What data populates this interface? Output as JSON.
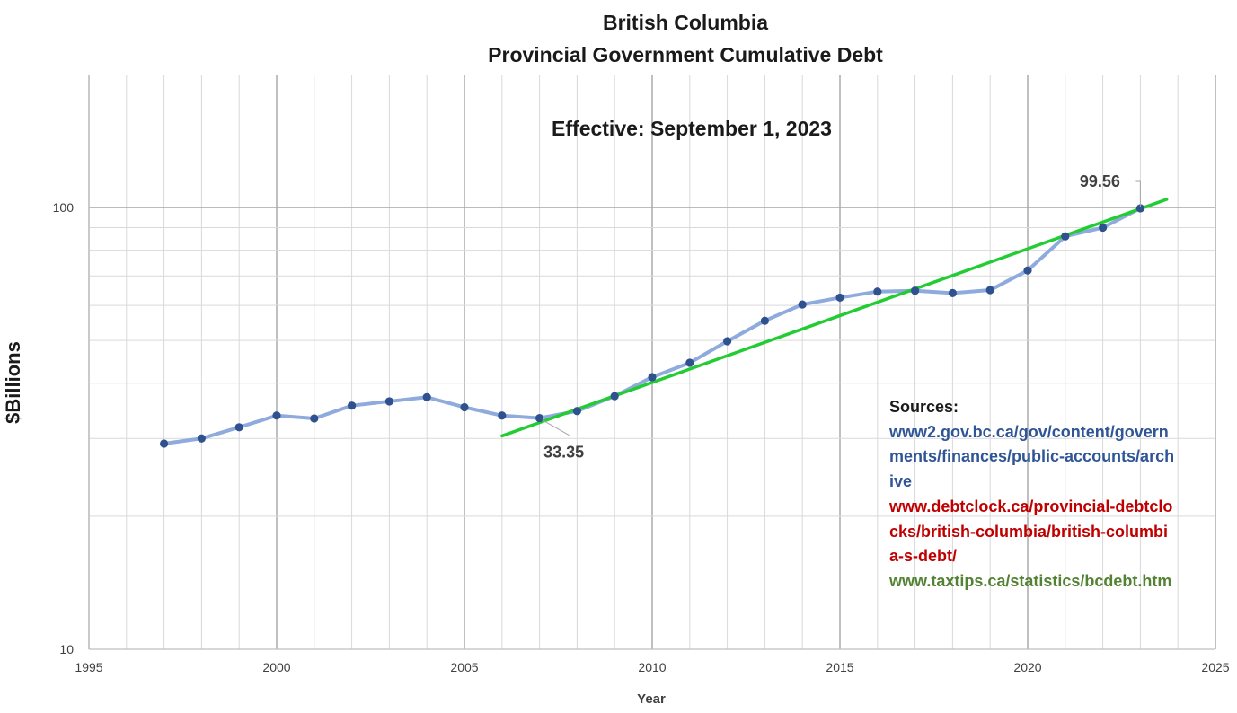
{
  "chart_data": {
    "type": "line",
    "title": "British Columbia",
    "subtitle": "Provincial Government Cumulative Debt",
    "annotation": "Effective: September 1, 2023",
    "xlabel": "Year",
    "ylabel": "$Billions",
    "xlim": [
      1995,
      2025
    ],
    "ylim": [
      10,
      200
    ],
    "yscale": "log",
    "grid": true,
    "x_ticks": [
      "1995",
      "2000",
      "2005",
      "2010",
      "2015",
      "2020",
      "2025"
    ],
    "y_ticks": [
      "10",
      "100"
    ],
    "series": [
      {
        "x": [
          1997,
          1998,
          1999,
          2000,
          2001,
          2002,
          2003,
          2004,
          2005,
          2006,
          2007,
          2008,
          2009,
          2010,
          2011,
          2012,
          2013,
          2014,
          2015,
          2016,
          2017,
          2018,
          2019,
          2020,
          2021,
          2022,
          2023
        ],
        "values": [
          29.2,
          30.0,
          31.8,
          33.8,
          33.3,
          35.6,
          36.4,
          37.2,
          35.3,
          33.8,
          33.35,
          34.6,
          37.4,
          41.3,
          44.5,
          49.8,
          55.4,
          60.3,
          62.5,
          64.5,
          64.8,
          64.0,
          65.0,
          72.0,
          86.0,
          90.0,
          99.56
        ],
        "color": "#8faadc",
        "marker_color": "#2f528f"
      },
      {
        "type": "trendline",
        "x": [
          2006,
          2023.7
        ],
        "values": [
          30.4,
          104.3
        ],
        "color": "#22cc33"
      }
    ],
    "data_labels": [
      {
        "x": 2007,
        "y": 33.35,
        "text": "33.35"
      },
      {
        "x": 2023,
        "y": 99.56,
        "text": "99.56"
      }
    ]
  },
  "sources": {
    "heading": "Sources:",
    "links": [
      {
        "text": "www2.gov.bc.ca/gov/content/governments/finances/public-accounts/archive",
        "color": "#2f5597"
      },
      {
        "text": "www.debtclock.ca/provincial-debtclocks/british-columbia/british-columbia-s-debt/",
        "color": "#c00000"
      },
      {
        "text": "www.taxtips.ca/statistics/bcdebt.htm",
        "color": "#548235"
      }
    ]
  }
}
